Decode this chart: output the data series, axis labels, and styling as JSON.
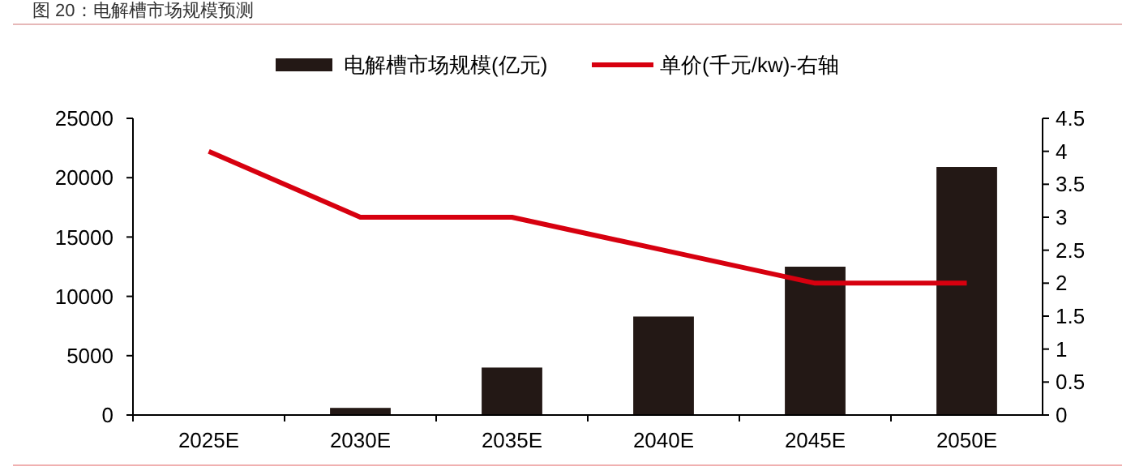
{
  "chart_data": {
    "type": "bar",
    "title": "图 20：电解槽市场规模预测",
    "categories": [
      "2025E",
      "2030E",
      "2035E",
      "2040E",
      "2045E",
      "2050E"
    ],
    "series": [
      {
        "name": "电解槽市场规模(亿元)",
        "color": "#231815",
        "values": [
          0,
          600,
          4000,
          8300,
          12500,
          20900
        ]
      },
      {
        "name": "单价(千元/kw)-右轴",
        "type": "line",
        "axis": "y2",
        "color": "#d7000f",
        "values": [
          4,
          3,
          3,
          2.5,
          2,
          2
        ]
      }
    ],
    "ylim": [
      0,
      25000
    ],
    "yticks": [
      0,
      5000,
      10000,
      15000,
      20000,
      25000
    ],
    "y2lim": [
      0,
      4.5
    ],
    "y2ticks": [
      0,
      0.5,
      1,
      1.5,
      2,
      2.5,
      3,
      3.5,
      4,
      4.5
    ],
    "legend": "top",
    "grid": false,
    "marker": "none"
  }
}
